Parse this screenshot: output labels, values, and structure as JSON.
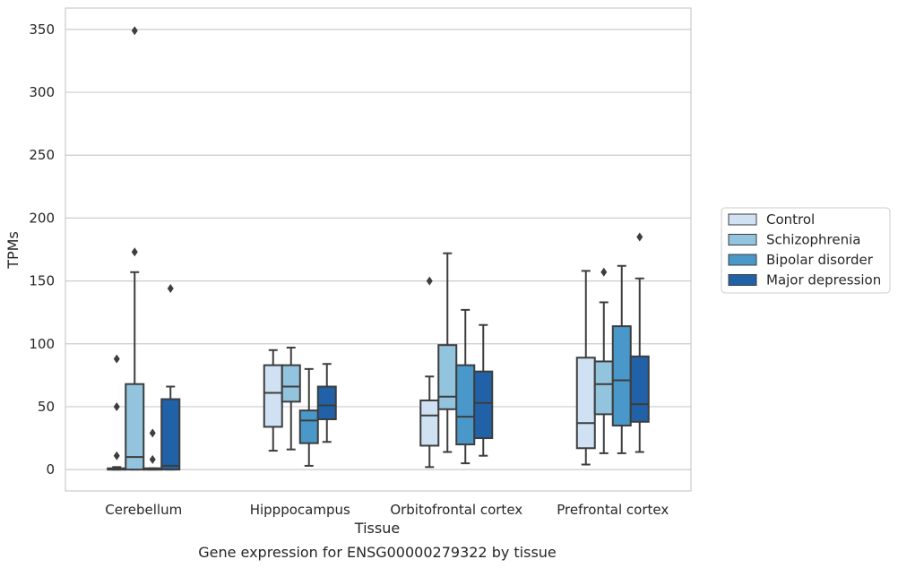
{
  "chart_data": {
    "type": "box",
    "title": "",
    "caption": "Gene expression for ENSG00000279322 by tissue",
    "xlabel": "Tissue",
    "ylabel": "TPMs",
    "ylim": [
      -17,
      367
    ],
    "yticks": [
      0,
      50,
      100,
      150,
      200,
      250,
      300,
      350
    ],
    "grid": "horizontal",
    "legend_position": "right",
    "categories": [
      "Cerebellum",
      "Hipppocampus",
      "Orbitofrontal cortex",
      "Prefrontal cortex"
    ],
    "series": [
      {
        "name": "Control",
        "color": "#cfe1f2",
        "boxes": [
          {
            "whislo": 0,
            "q1": 0,
            "med": 0,
            "q3": 1,
            "whishi": 2,
            "fliers": [
              88,
              50,
              11
            ]
          },
          {
            "whislo": 15,
            "q1": 34,
            "med": 61,
            "q3": 83,
            "whishi": 95,
            "fliers": []
          },
          {
            "whislo": 2,
            "q1": 19,
            "med": 43,
            "q3": 55,
            "whishi": 74,
            "fliers": [
              150
            ]
          },
          {
            "whislo": 4,
            "q1": 17,
            "med": 37,
            "q3": 89,
            "whishi": 158,
            "fliers": []
          }
        ]
      },
      {
        "name": "Schizophrenia",
        "color": "#93c4de",
        "boxes": [
          {
            "whislo": 0,
            "q1": 0,
            "med": 10,
            "q3": 68,
            "whishi": 157,
            "fliers": [
              173,
              349
            ]
          },
          {
            "whislo": 16,
            "q1": 54,
            "med": 66,
            "q3": 83,
            "whishi": 97,
            "fliers": []
          },
          {
            "whislo": 14,
            "q1": 48,
            "med": 58,
            "q3": 99,
            "whishi": 172,
            "fliers": []
          },
          {
            "whislo": 13,
            "q1": 44,
            "med": 68,
            "q3": 86,
            "whishi": 133,
            "fliers": [
              157
            ]
          }
        ]
      },
      {
        "name": "Bipolar disorder",
        "color": "#4a98c9",
        "boxes": [
          {
            "whislo": 0,
            "q1": 0,
            "med": 0,
            "q3": 1,
            "whishi": 1,
            "fliers": [
              29,
              8
            ]
          },
          {
            "whislo": 3,
            "q1": 21,
            "med": 39,
            "q3": 47,
            "whishi": 80,
            "fliers": []
          },
          {
            "whislo": 5,
            "q1": 20,
            "med": 42,
            "q3": 83,
            "whishi": 127,
            "fliers": []
          },
          {
            "whislo": 13,
            "q1": 35,
            "med": 71,
            "q3": 114,
            "whishi": 162,
            "fliers": []
          }
        ]
      },
      {
        "name": "Major depression",
        "color": "#2061a8",
        "boxes": [
          {
            "whislo": 0,
            "q1": 0,
            "med": 3,
            "q3": 56,
            "whishi": 66,
            "fliers": [
              144
            ]
          },
          {
            "whislo": 22,
            "q1": 40,
            "med": 51,
            "q3": 66,
            "whishi": 84,
            "fliers": []
          },
          {
            "whislo": 11,
            "q1": 25,
            "med": 53,
            "q3": 78,
            "whishi": 115,
            "fliers": []
          },
          {
            "whislo": 14,
            "q1": 38,
            "med": 52,
            "q3": 90,
            "whishi": 152,
            "fliers": [
              185
            ]
          }
        ]
      }
    ]
  }
}
